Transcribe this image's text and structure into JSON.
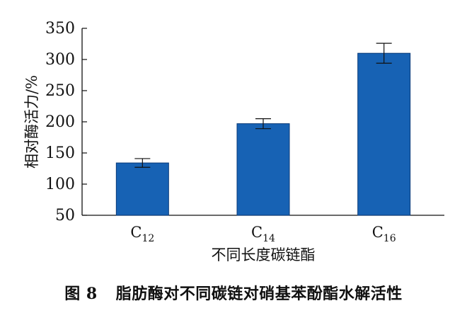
{
  "figure": {
    "caption_number": "图 8",
    "caption_text": "脂肪酶对不同碳链对硝基苯酚酯水解活性"
  },
  "chart_data": {
    "type": "bar",
    "categories": [
      {
        "base": "C",
        "sub": "12"
      },
      {
        "base": "C",
        "sub": "14"
      },
      {
        "base": "C",
        "sub": "16"
      }
    ],
    "values": [
      134,
      197,
      310
    ],
    "errors": [
      7,
      8,
      16
    ],
    "xlabel": "不同长度碳链酯",
    "ylabel": "相对酶活力/%",
    "ylim": [
      50,
      350
    ],
    "yticks": [
      50,
      100,
      150,
      200,
      250,
      300,
      350
    ],
    "grid": false,
    "bar_color": "#1762b4",
    "edge_color": "#0a3a78"
  }
}
